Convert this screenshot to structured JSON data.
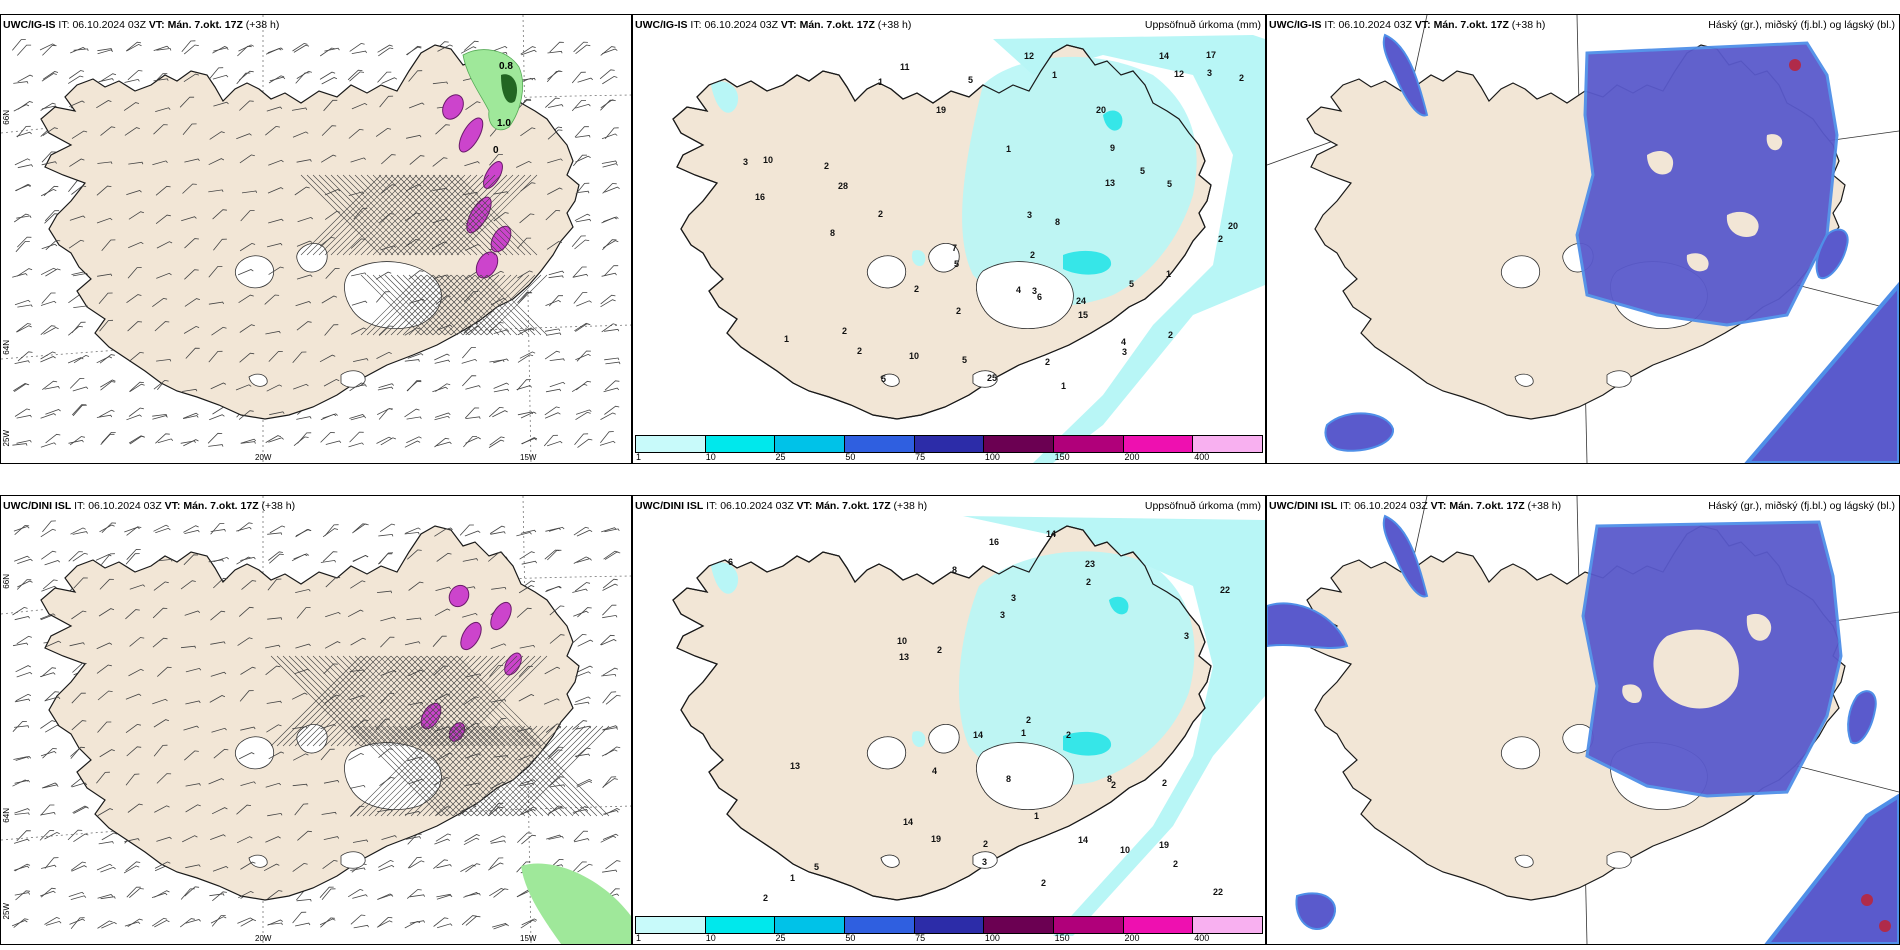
{
  "colors": {
    "land": "#f2e6d6",
    "coast": "#1a1a1a",
    "precip_light": "#b8f6f6",
    "precip_mid": "#36e6e8",
    "cloud_high": "#5a5acc",
    "cloud_high_edge": "#4f8fe8",
    "green": "#9fe89a",
    "magenta": "#cc44cc"
  },
  "panels": [
    {
      "model": "UWC/IG-IS",
      "it_label": "IT:",
      "it": "06.10.2024 03Z",
      "vt_label": "VT:",
      "vt": "Mán. 7.okt. 17Z",
      "lead": "(+38 h)",
      "right": ""
    },
    {
      "model": "UWC/IG-IS",
      "it_label": "IT:",
      "it": "06.10.2024 03Z",
      "vt_label": "VT:",
      "vt": "Mán. 7.okt. 17Z",
      "lead": "(+38 h)",
      "right": "Uppsöfnuð úrkoma (mm)"
    },
    {
      "model": "UWC/IG-IS",
      "it_label": "IT:",
      "it": "06.10.2024 03Z",
      "vt_label": "VT:",
      "vt": "Mán. 7.okt. 17Z",
      "lead": "(+38 h)",
      "right": "Háský (gr.), miðský (fj.bl.) og lágský (bl.)"
    },
    {
      "model": "UWC/DINI ISL",
      "it_label": "IT:",
      "it": "06.10.2024 03Z",
      "vt_label": "VT:",
      "vt": "Mán. 7.okt. 17Z",
      "lead": "(+38 h)",
      "right": ""
    },
    {
      "model": "UWC/DINI ISL",
      "it_label": "IT:",
      "it": "06.10.2024 03Z",
      "vt_label": "VT:",
      "vt": "Mán. 7.okt. 17Z",
      "lead": "(+38 h)",
      "right": "Uppsöfnuð úrkoma (mm)"
    },
    {
      "model": "UWC/DINI ISL",
      "it_label": "IT:",
      "it": "06.10.2024 03Z",
      "vt_label": "VT:",
      "vt": "Mán. 7.okt. 17Z",
      "lead": "(+38 h)",
      "right": "Háský (gr.), miðský (fj.bl.) og lágský (bl.)"
    }
  ],
  "axis_labels": {
    "lat66": "66N",
    "lat64": "64N",
    "lon25": "25W",
    "lon20": "20W",
    "lon15": "15W"
  },
  "wind_values": {
    "a": "0.8",
    "b": "1.0",
    "c": "0"
  },
  "legend": {
    "ticks": [
      "1",
      "10",
      "25",
      "50",
      "75",
      "100",
      "150",
      "200",
      "400"
    ],
    "colors": [
      "#c8fafa",
      "#00e8ec",
      "#00c2e8",
      "#2f5fe0",
      "#2c2ca8",
      "#6b0052",
      "#b0007a",
      "#ee10b0",
      "#f8b0f0"
    ]
  },
  "precip_top": [
    "1",
    "1",
    "2",
    "2",
    "5",
    "2",
    "2",
    "2",
    "5",
    "2",
    "1",
    "3",
    "7",
    "3",
    "13",
    "14",
    "16",
    "12",
    "5",
    "5",
    "4",
    "6",
    "5",
    "3",
    "8",
    "9",
    "8",
    "28",
    "25",
    "19",
    "15",
    "17",
    "20",
    "10",
    "11",
    "5",
    "12",
    "10",
    "20",
    "24",
    "5",
    "3",
    "2",
    "2",
    "1",
    "1",
    "4",
    "2",
    "2",
    "3",
    "2",
    "1"
  ],
  "precip_bottom": [
    "1",
    "2",
    "2",
    "8",
    "8",
    "14",
    "19",
    "23",
    "10",
    "14",
    "22",
    "13",
    "19",
    "16",
    "14",
    "10",
    "8",
    "13",
    "14",
    "22",
    "6",
    "5",
    "3",
    "2",
    "2",
    "2",
    "2",
    "3",
    "3",
    "1",
    "2",
    "4",
    "3",
    "2",
    "1",
    "2",
    "2"
  ]
}
